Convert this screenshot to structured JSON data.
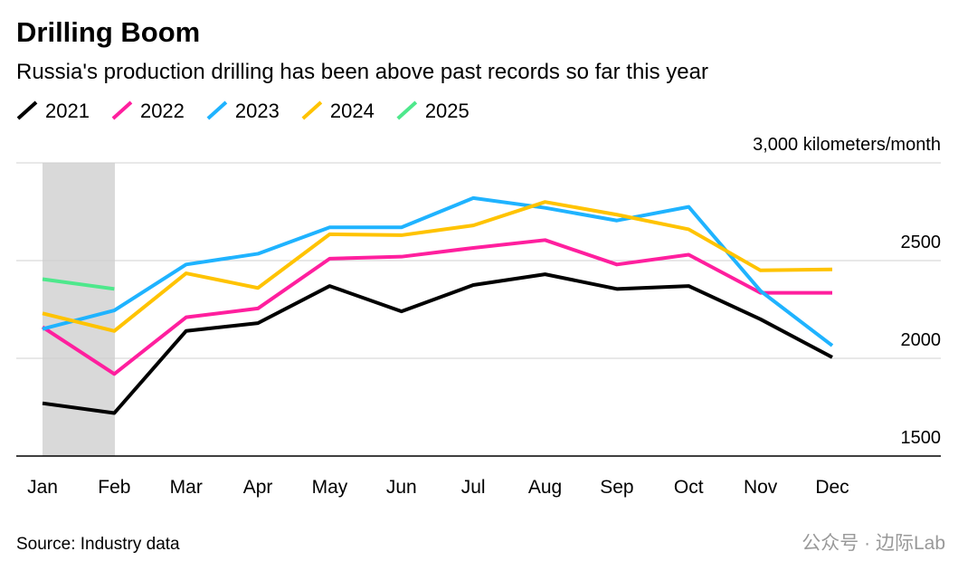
{
  "chart_data": {
    "type": "line",
    "title": "Drilling Boom",
    "subtitle": "Russia's production drilling has been above past records so far this year",
    "source": "Source: Industry data",
    "watermark": "公众号 · 边际Lab",
    "categories": [
      "Jan",
      "Feb",
      "Mar",
      "Apr",
      "May",
      "Jun",
      "Jul",
      "Aug",
      "Sep",
      "Oct",
      "Nov",
      "Dec"
    ],
    "series": [
      {
        "name": "2021",
        "color": "#000000",
        "values": [
          1770,
          1720,
          2140,
          2180,
          2370,
          2240,
          2375,
          2430,
          2355,
          2370,
          2200,
          2005
        ]
      },
      {
        "name": "2022",
        "color": "#ff1f9e",
        "values": [
          2160,
          1920,
          2210,
          2255,
          2510,
          2520,
          2565,
          2605,
          2480,
          2530,
          2335,
          2335
        ]
      },
      {
        "name": "2023",
        "color": "#1fb3ff",
        "values": [
          2150,
          2245,
          2480,
          2535,
          2670,
          2670,
          2820,
          2770,
          2705,
          2775,
          2345,
          2065
        ]
      },
      {
        "name": "2024",
        "color": "#ffc300",
        "values": [
          2230,
          2140,
          2435,
          2360,
          2635,
          2630,
          2680,
          2800,
          2735,
          2660,
          2450,
          2455
        ]
      },
      {
        "name": "2025",
        "color": "#4ee88c",
        "values": [
          2405,
          2355,
          null,
          null,
          null,
          null,
          null,
          null,
          null,
          null,
          null,
          null
        ]
      }
    ],
    "ylim": [
      1500,
      3000
    ],
    "yticks": [
      1500,
      2000,
      2500,
      {
        "value": 3000,
        "label": "3,000 kilometers/month"
      }
    ],
    "grid": true
  }
}
